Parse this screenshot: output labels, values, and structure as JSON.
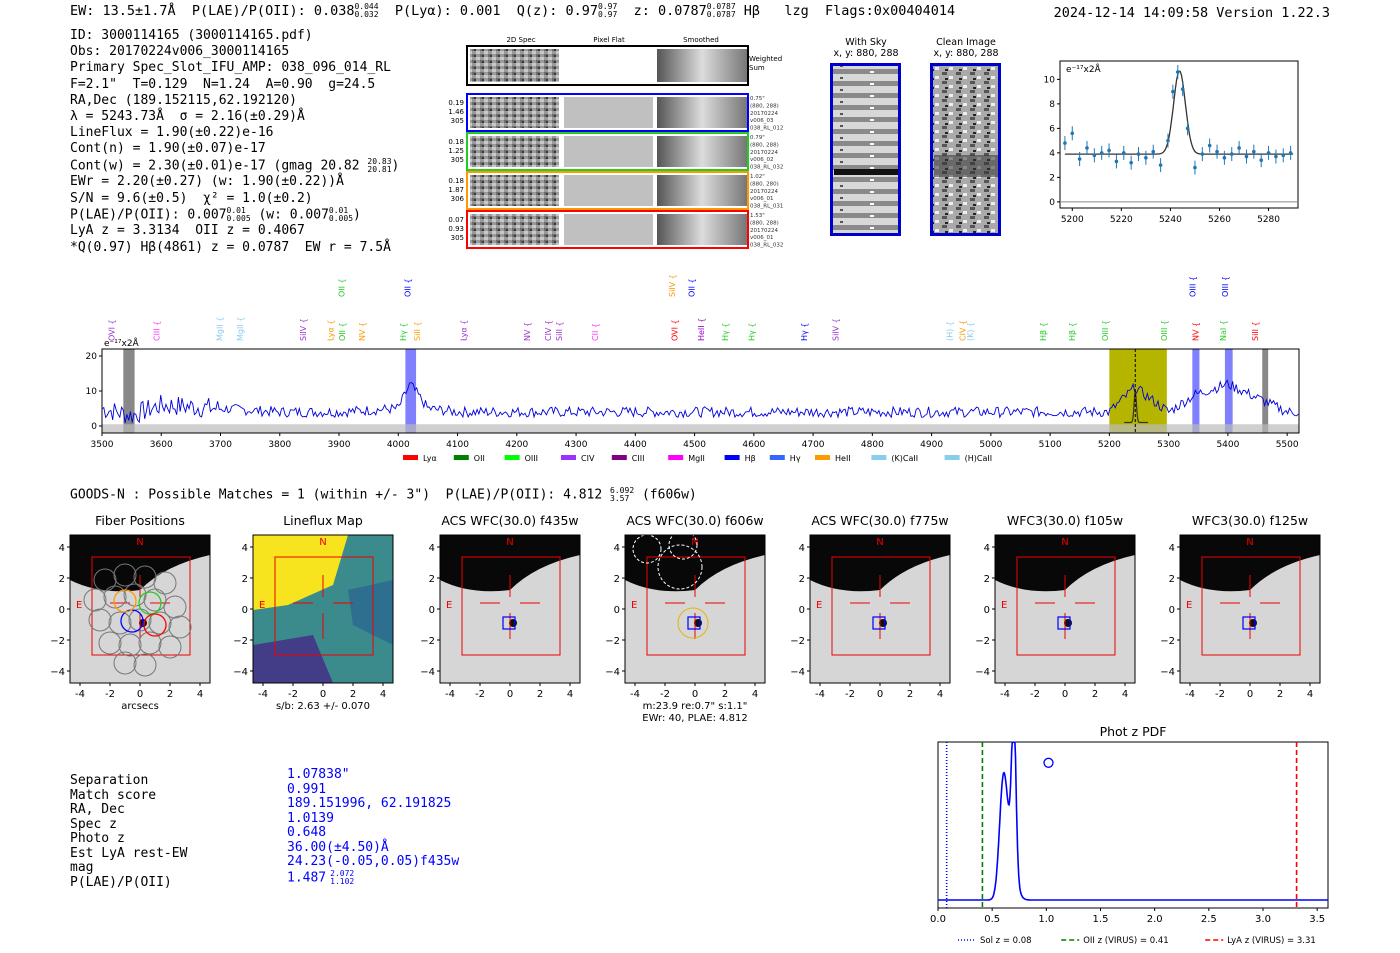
{
  "header": {
    "line": "EW: 13.5±1.7Å  P(LAE)/P(OII): 0.038",
    "ew_upper": "0.044",
    "ew_lower": "0.032",
    "lya": "P(Lyα): 0.001  Q(z): 0.97",
    "qz_upper": "0.97",
    "qz_lower": "0.97",
    "z": "z: 0.0787",
    "z_upper": "0.0787",
    "z_lower": "0.0787",
    "rest": " Hβ   lzg  Flags:0x00404014",
    "timestamp": "2024-12-14 14:09:58  Version 1.22.3"
  },
  "info": {
    "id": "ID: 3000114165 (3000114165.pdf)",
    "obs": "Obs: 20170224v006_3000114165",
    "spec": "Primary Spec_Slot_IFU_AMP: 038_096_014_RL",
    "fit": "F=2.1\"  T=0.129  N=1.24  A=0.90  g=24.5",
    "radec": "RA,Dec (189.152115,62.192120)",
    "lambda": "λ = 5243.73Å  σ = 2.16(±0.29)Å",
    "lineflux": "LineFlux = 1.90(±0.22)e-16",
    "contn": "Cont(n) = 1.90(±0.07)e-17",
    "contw": "Cont(w) = 2.30(±0.01)e-17 (gmag 20.82",
    "gmag_upper": "20.83",
    "gmag_lower": "20.81",
    "ewr": "EWr = 2.20(±0.27) (w: 1.90(±0.22))Å",
    "sn": "S/N = 9.6(±0.5)  χ² = 1.0(±0.2)",
    "plae": "P(LAE)/P(OII): 0.007",
    "plae_u1": "0.01",
    "plae_l1": "0.005",
    "plae_w": " (w: 0.007",
    "plae_u2": "0.01",
    "plae_l2": "0.005",
    "lya_z": "LyA z = 3.3134  OII z = 0.4067",
    "qline": "*Q(0.97) Hβ(4861) z = 0.0787  EW r = 7.5Å"
  },
  "cutouts": {
    "col_titles": [
      "2D Spec",
      "Pixel Flat",
      "Smoothed"
    ],
    "weighted": "Weighted Sum",
    "rows": [
      {
        "stats": [
          "0.19",
          "1.46",
          "305"
        ],
        "meta": [
          "0.75\"",
          "(880, 288)",
          "20170224",
          "v006_03",
          "038_RL_012"
        ],
        "color": "#0000ff"
      },
      {
        "stats": [
          "0.18",
          "1.25",
          "305"
        ],
        "meta": [
          "0.79\"",
          "(880, 288)",
          "20170224",
          "v006_02",
          "038_RL_032"
        ],
        "color": "#22cc22"
      },
      {
        "stats": [
          "0.18",
          "1.87",
          "306"
        ],
        "meta": [
          "1.02\"",
          "(880, 280)",
          "20170224",
          "v006_01",
          "038_RL_031"
        ],
        "color": "#ff9900"
      },
      {
        "stats": [
          "0.07",
          "0.93",
          "305"
        ],
        "meta": [
          "1.53\"",
          "(880, 288)",
          "20170224",
          "v006_01",
          "038_RL_032"
        ],
        "color": "#ff0000"
      }
    ]
  },
  "sky": {
    "title1": "With Sky",
    "sub1": "x, y: 880, 288",
    "title2": "Clean Image",
    "sub2": "x, y: 880, 288"
  },
  "zoom": {
    "unit": "e⁻¹⁷x2Å",
    "xticks": [
      "5200",
      "5220",
      "5240",
      "5260",
      "5280"
    ],
    "yticks": [
      "0",
      "2",
      "4",
      "6",
      "8",
      "10"
    ]
  },
  "spectrum": {
    "unit": "e⁻¹⁷x2Å",
    "xticks": [
      "3500",
      "3600",
      "3700",
      "3800",
      "3900",
      "4000",
      "4100",
      "4200",
      "4300",
      "4400",
      "4500",
      "4600",
      "4700",
      "4800",
      "4900",
      "5000",
      "5100",
      "5200",
      "5300",
      "5400",
      "5500"
    ],
    "yticks": [
      "0",
      "10",
      "20"
    ],
    "lines_low": [
      {
        "label": "OVI",
        "x": 3521,
        "color": "#9933cc"
      },
      {
        "label": "CIII",
        "x": 3597,
        "color": "#ff33ff"
      },
      {
        "label": "MgII",
        "x": 3703,
        "color": "#88ccee"
      },
      {
        "label": "MgII",
        "x": 3738,
        "color": "#88ccee"
      },
      {
        "label": "SiIV",
        "x": 3844,
        "color": "#9933cc"
      },
      {
        "label": "Lyα",
        "x": 3891,
        "color": "#ff9900"
      },
      {
        "label": "OII",
        "x": 3910,
        "color": "#22cc22"
      },
      {
        "label": "NV",
        "x": 3944,
        "color": "#ff9900"
      },
      {
        "label": "Hγ",
        "x": 4013,
        "color": "#22cc22"
      },
      {
        "label": "SiII",
        "x": 4037,
        "color": "#ff9900"
      },
      {
        "label": "Lyα",
        "x": 4115,
        "color": "#9933cc"
      },
      {
        "label": "NV",
        "x": 4222,
        "color": "#9933cc"
      },
      {
        "label": "CIV",
        "x": 4258,
        "color": "#9933cc"
      },
      {
        "label": "SiII",
        "x": 4276,
        "color": "#9933cc"
      },
      {
        "label": "CII",
        "x": 4337,
        "color": "#ff33ff"
      },
      {
        "label": "OVI",
        "x": 4471,
        "color": "#ff0000"
      },
      {
        "label": "HeII",
        "x": 4516,
        "color": "#9900cc"
      },
      {
        "label": "Hγ",
        "x": 4556,
        "color": "#22cc22"
      },
      {
        "label": "Hγ",
        "x": 4601,
        "color": "#22cc22"
      },
      {
        "label": "Hγ",
        "x": 4690,
        "color": "#0000ff"
      },
      {
        "label": "SiIV",
        "x": 4743,
        "color": "#9933cc"
      },
      {
        "label": "(H)",
        "x": 4935,
        "color": "#88ccee"
      },
      {
        "label": "CIV",
        "x": 4957,
        "color": "#ff9900"
      },
      {
        "label": "(K)",
        "x": 4970,
        "color": "#88ccee"
      },
      {
        "label": "Hβ",
        "x": 5093,
        "color": "#22cc22"
      },
      {
        "label": "Hβ",
        "x": 5142,
        "color": "#22cc22"
      },
      {
        "label": "OIII",
        "x": 5198,
        "color": "#22cc22"
      },
      {
        "label": "OIII",
        "x": 5297,
        "color": "#22cc22"
      },
      {
        "label": "NV",
        "x": 5350,
        "color": "#ff0000"
      },
      {
        "label": "NaI",
        "x": 5397,
        "color": "#22cc22"
      },
      {
        "label": "SiII",
        "x": 5451,
        "color": "#ff0000"
      }
    ],
    "lines_high": [
      {
        "label": "OII",
        "x": 3909,
        "color": "#22cc22"
      },
      {
        "label": "OII",
        "x": 4021,
        "color": "#0000ff"
      },
      {
        "label": "SiIV",
        "x": 4467,
        "color": "#ff9900"
      },
      {
        "label": "OII",
        "x": 4500,
        "color": "#0000ff"
      },
      {
        "label": "OIII",
        "x": 5345,
        "color": "#0000ff"
      },
      {
        "label": "OIII",
        "x": 5400,
        "color": "#0000ff"
      }
    ],
    "legend": [
      {
        "label": "Lyα",
        "color": "#ff0000"
      },
      {
        "label": "OII",
        "color": "#008000"
      },
      {
        "label": "OIII",
        "color": "#00ff00"
      },
      {
        "label": "CIV",
        "color": "#9933ff"
      },
      {
        "label": "CIII",
        "color": "#800080"
      },
      {
        "label": "MgII",
        "color": "#ff00ff"
      },
      {
        "label": "Hβ",
        "color": "#0000ff"
      },
      {
        "label": "Hγ",
        "color": "#3366ff"
      },
      {
        "label": "HeII",
        "color": "#ff9900"
      },
      {
        "label": "(K)CaII",
        "color": "#88ccee"
      },
      {
        "label": "(H)CaII",
        "color": "#88ccee"
      }
    ]
  },
  "goods": {
    "text": "GOODS-N : Possible Matches = 1 (within +/- 3\")  P(LAE)/P(OII): 4.812",
    "upper": "6.092",
    "lower": "3.57",
    "filter": " (f606w)"
  },
  "panels": [
    {
      "title": "Fiber Positions",
      "xlabel": "arcsecs"
    },
    {
      "title": "Lineflux Map",
      "xlabel": "s/b: 2.63 +/- 0.070"
    },
    {
      "title": "ACS WFC(30.0) f435w",
      "xlabel": ""
    },
    {
      "title": "ACS WFC(30.0) f606w",
      "xlabel": "m:23.9  re:0.7\"  s:1.1\"",
      "xlabel2": "EWr: 40, PLAE: 4.812"
    },
    {
      "title": "ACS WFC(30.0) f775w",
      "xlabel": ""
    },
    {
      "title": "WFC3(30.0) f105w",
      "xlabel": ""
    },
    {
      "title": "WFC3(30.0) f125w",
      "xlabel": ""
    }
  ],
  "panel_ticks": [
    "-4",
    "-2",
    "0",
    "2",
    "4"
  ],
  "compass": {
    "n": "N",
    "e": "E"
  },
  "match": {
    "labels": [
      "Separation",
      "Match score",
      "RA, Dec",
      "Spec z",
      "Photo z",
      "Est LyA rest-EW",
      "mag",
      "P(LAE)/P(OII)"
    ],
    "values": [
      "1.07838\"",
      "0.991",
      "189.151996, 62.191825",
      "1.0139",
      "0.648",
      "36.00(±4.50)Å",
      "24.23(-0.05,0.05)f435w",
      "1.487"
    ],
    "plae_upper": "2.072",
    "plae_lower": "1.102"
  },
  "photz": {
    "title": "Phot z PDF",
    "xticks": [
      "0.0",
      "0.5",
      "1.0",
      "1.5",
      "2.0",
      "2.5",
      "3.0",
      "3.5"
    ],
    "legend": [
      "Sol z = 0.08",
      "OII z (VIRUS) = 0.41",
      "LyA z (VIRUS) = 3.31"
    ],
    "colors": {
      "sol": "#0000ff",
      "oii": "#008000",
      "lya": "#ff0000",
      "pdf": "#0000ff"
    }
  },
  "chart_data": [
    {
      "type": "line",
      "title": "",
      "xlabel": "",
      "ylabel": "e⁻¹⁷x2Å",
      "xlim": [
        3500,
        5520
      ],
      "ylim": [
        -2,
        22
      ],
      "series": [
        {
          "values_note": "noisy continuum ~5 with emission peaks",
          "x": [
            3500,
            3550,
            3600,
            3700,
            3800,
            3900,
            4000,
            4020,
            4050,
            4100,
            4200,
            4300,
            4400,
            4500,
            4600,
            4700,
            4800,
            4900,
            5000,
            5100,
            5200,
            5243,
            5300,
            5345,
            5400,
            5500
          ],
          "y": [
            5,
            3,
            6,
            5,
            4,
            4,
            5,
            12,
            5,
            4,
            4,
            4,
            4,
            4,
            4,
            4,
            4,
            4,
            4,
            4,
            4,
            11,
            4,
            9,
            12,
            4
          ]
        }
      ]
    },
    {
      "type": "scatter",
      "title": "",
      "xlabel": "",
      "ylabel": "e⁻¹⁷x2Å",
      "xlim": [
        5195,
        5292
      ],
      "ylim": [
        -0.5,
        11.5
      ],
      "series": [
        {
          "x": [
            5197,
            5200,
            5203,
            5206,
            5209,
            5212,
            5215,
            5218,
            5221,
            5224,
            5227,
            5230,
            5233,
            5236,
            5239,
            5241,
            5243,
            5245,
            5247,
            5250,
            5253,
            5256,
            5259,
            5262,
            5265,
            5268,
            5271,
            5274,
            5277,
            5280,
            5283,
            5286,
            5289
          ],
          "y": [
            4.8,
            5.6,
            3.5,
            4.4,
            3.8,
            4.0,
            4.2,
            3.3,
            4.0,
            3.2,
            3.9,
            3.6,
            4.1,
            3.0,
            5.0,
            9.0,
            10.6,
            9.2,
            6.0,
            2.8,
            3.9,
            4.6,
            4.1,
            3.6,
            3.9,
            4.4,
            3.7,
            4.1,
            3.4,
            4.0,
            3.7,
            3.8,
            4.0
          ]
        }
      ],
      "fit_continuum": 3.9
    },
    {
      "type": "line",
      "title": "Phot z PDF",
      "xlabel": "",
      "ylabel": "",
      "xlim": [
        0,
        3.6
      ],
      "series": [
        {
          "name": "pdf",
          "x": [
            0.0,
            0.5,
            0.55,
            0.6,
            0.65,
            0.7,
            0.75,
            0.8,
            1.0,
            3.6
          ],
          "y": [
            0,
            0,
            0.3,
            0.65,
            0.55,
            0.95,
            0.3,
            0,
            0,
            0
          ]
        }
      ],
      "vlines": [
        {
          "name": "Sol z = 0.08",
          "x": 0.08
        },
        {
          "name": "OII z (VIRUS) = 0.41",
          "x": 0.41
        },
        {
          "name": "LyA z (VIRUS) = 3.31",
          "x": 3.31
        }
      ],
      "marker": {
        "x": 1.02,
        "y": 0.87
      }
    }
  ]
}
